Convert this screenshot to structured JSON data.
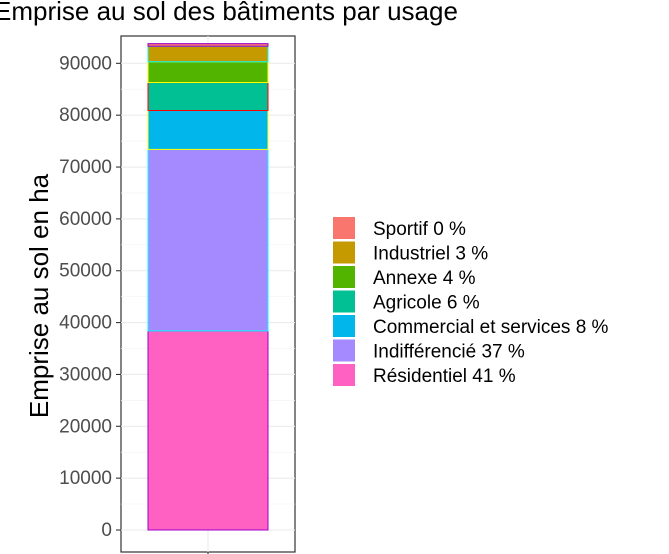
{
  "chart_data": {
    "type": "bar",
    "stacked": true,
    "title": "",
    "visible_title_fragment": "Emprise au sol des bâtiments par usage",
    "ylabel": "Emprise au sol en ha",
    "xlabel": "",
    "ylim": [
      0,
      94500
    ],
    "yticks": [
      0,
      10000,
      20000,
      30000,
      40000,
      50000,
      60000,
      70000,
      80000,
      90000
    ],
    "grid": true,
    "legend_position": "right",
    "series": [
      {
        "name": "Résidentiel 41 %",
        "value": 38400,
        "color": "#FF61C3",
        "border": "#9900CC"
      },
      {
        "name": "Indifférencié 37 %",
        "value": 35000,
        "color": "#A58AFF",
        "border": "#00FFFF"
      },
      {
        "name": "Commercial et services 8 %",
        "value": 7500,
        "color": "#00B6EB",
        "border": "#FFFF00"
      },
      {
        "name": "Agricole 6 %",
        "value": 5400,
        "color": "#00C094",
        "border": "#FF0000"
      },
      {
        "name": "Annexe 4 %",
        "value": 4000,
        "color": "#53B400",
        "border": "#FFFF00"
      },
      {
        "name": "Industriel 3 %",
        "value": 3000,
        "color": "#C49A00",
        "border": "#00FFFF"
      },
      {
        "name": "Sportif 0 %",
        "value": 500,
        "color": "#F8766D",
        "border": "#9900CC"
      }
    ],
    "legend_order": [
      "Sportif 0 %",
      "Industriel 3 %",
      "Annexe 4 %",
      "Agricole 6 %",
      "Commercial et services 8 %",
      "Indifférencié 37 %",
      "Résidentiel 41 %"
    ]
  }
}
